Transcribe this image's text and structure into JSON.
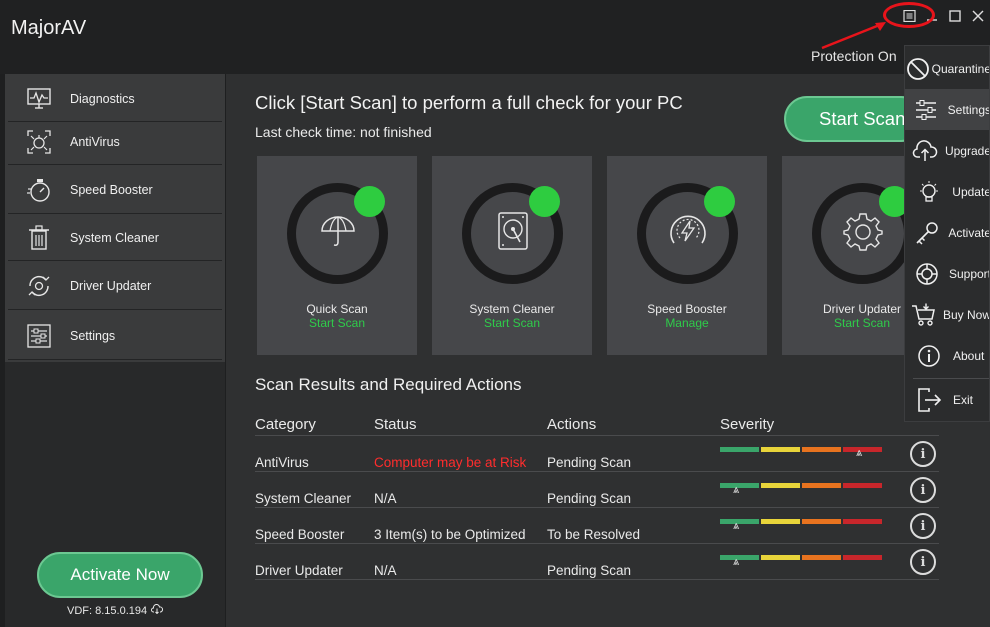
{
  "app": {
    "title": "MajorAV",
    "protection": "Protection On"
  },
  "sidebar": {
    "items": [
      {
        "label": "Diagnostics",
        "icon": "diagnostics-icon"
      },
      {
        "label": "AntiVirus",
        "icon": "virus-icon"
      },
      {
        "label": "Speed Booster",
        "icon": "stopwatch-icon"
      },
      {
        "label": "System Cleaner",
        "icon": "trash-icon"
      },
      {
        "label": "Driver Updater",
        "icon": "refresh-gear-icon"
      },
      {
        "label": "Settings",
        "icon": "sliders-icon"
      }
    ],
    "activate_label": "Activate Now",
    "vdf": "VDF: 8.15.0.194"
  },
  "main": {
    "headline": "Click [Start Scan] to perform a full check for your PC",
    "last_check": "Last check time: not finished",
    "start_button": "Start Scan",
    "cards": [
      {
        "name": "Quick Scan",
        "action": "Start Scan",
        "icon": "umbrella-icon"
      },
      {
        "name": "System Cleaner",
        "action": "Start Scan",
        "icon": "hard-drive-icon"
      },
      {
        "name": "Speed Booster",
        "action": "Manage",
        "icon": "speedometer-icon"
      },
      {
        "name": "Driver Updater",
        "action": "Start Scan",
        "icon": "gear-icon"
      }
    ],
    "results_title": "Scan Results and Required Actions",
    "columns": [
      "Category",
      "Status",
      "Actions",
      "Severity"
    ],
    "rows": [
      {
        "category": "AntiVirus",
        "status": "Computer may be at Risk",
        "action": "Pending Scan",
        "severity": "high"
      },
      {
        "category": "System Cleaner",
        "status": "N/A",
        "action": "Pending Scan",
        "severity": "low"
      },
      {
        "category": "Speed Booster",
        "status": "3 Item(s) to be Optimized",
        "action": "To be Resolved",
        "severity": "low"
      },
      {
        "category": "Driver Updater",
        "status": "N/A",
        "action": "Pending Scan",
        "severity": "low"
      }
    ],
    "severity_colors": [
      "#3aa56a",
      "#e8d43a",
      "#e8731f",
      "#c8262b"
    ]
  },
  "menu": {
    "items": [
      {
        "label": "Quarantine",
        "icon": "block-icon"
      },
      {
        "label": "Settings",
        "icon": "sliders-icon"
      },
      {
        "label": "Upgrade",
        "icon": "cloud-upload-icon"
      },
      {
        "label": "Update",
        "icon": "lightbulb-icon"
      },
      {
        "label": "Activate",
        "icon": "key-icon"
      },
      {
        "label": "Support",
        "icon": "lifebuoy-icon"
      },
      {
        "label": "Buy Now",
        "icon": "cart-icon"
      },
      {
        "label": "About",
        "icon": "info-icon"
      },
      {
        "label": "Exit",
        "icon": "exit-icon"
      }
    ]
  },
  "colors": {
    "accent": "#3aa56a",
    "status_dot": "#2ecc40",
    "risk": "#ff2d2d",
    "annotation": "#e8141b"
  }
}
